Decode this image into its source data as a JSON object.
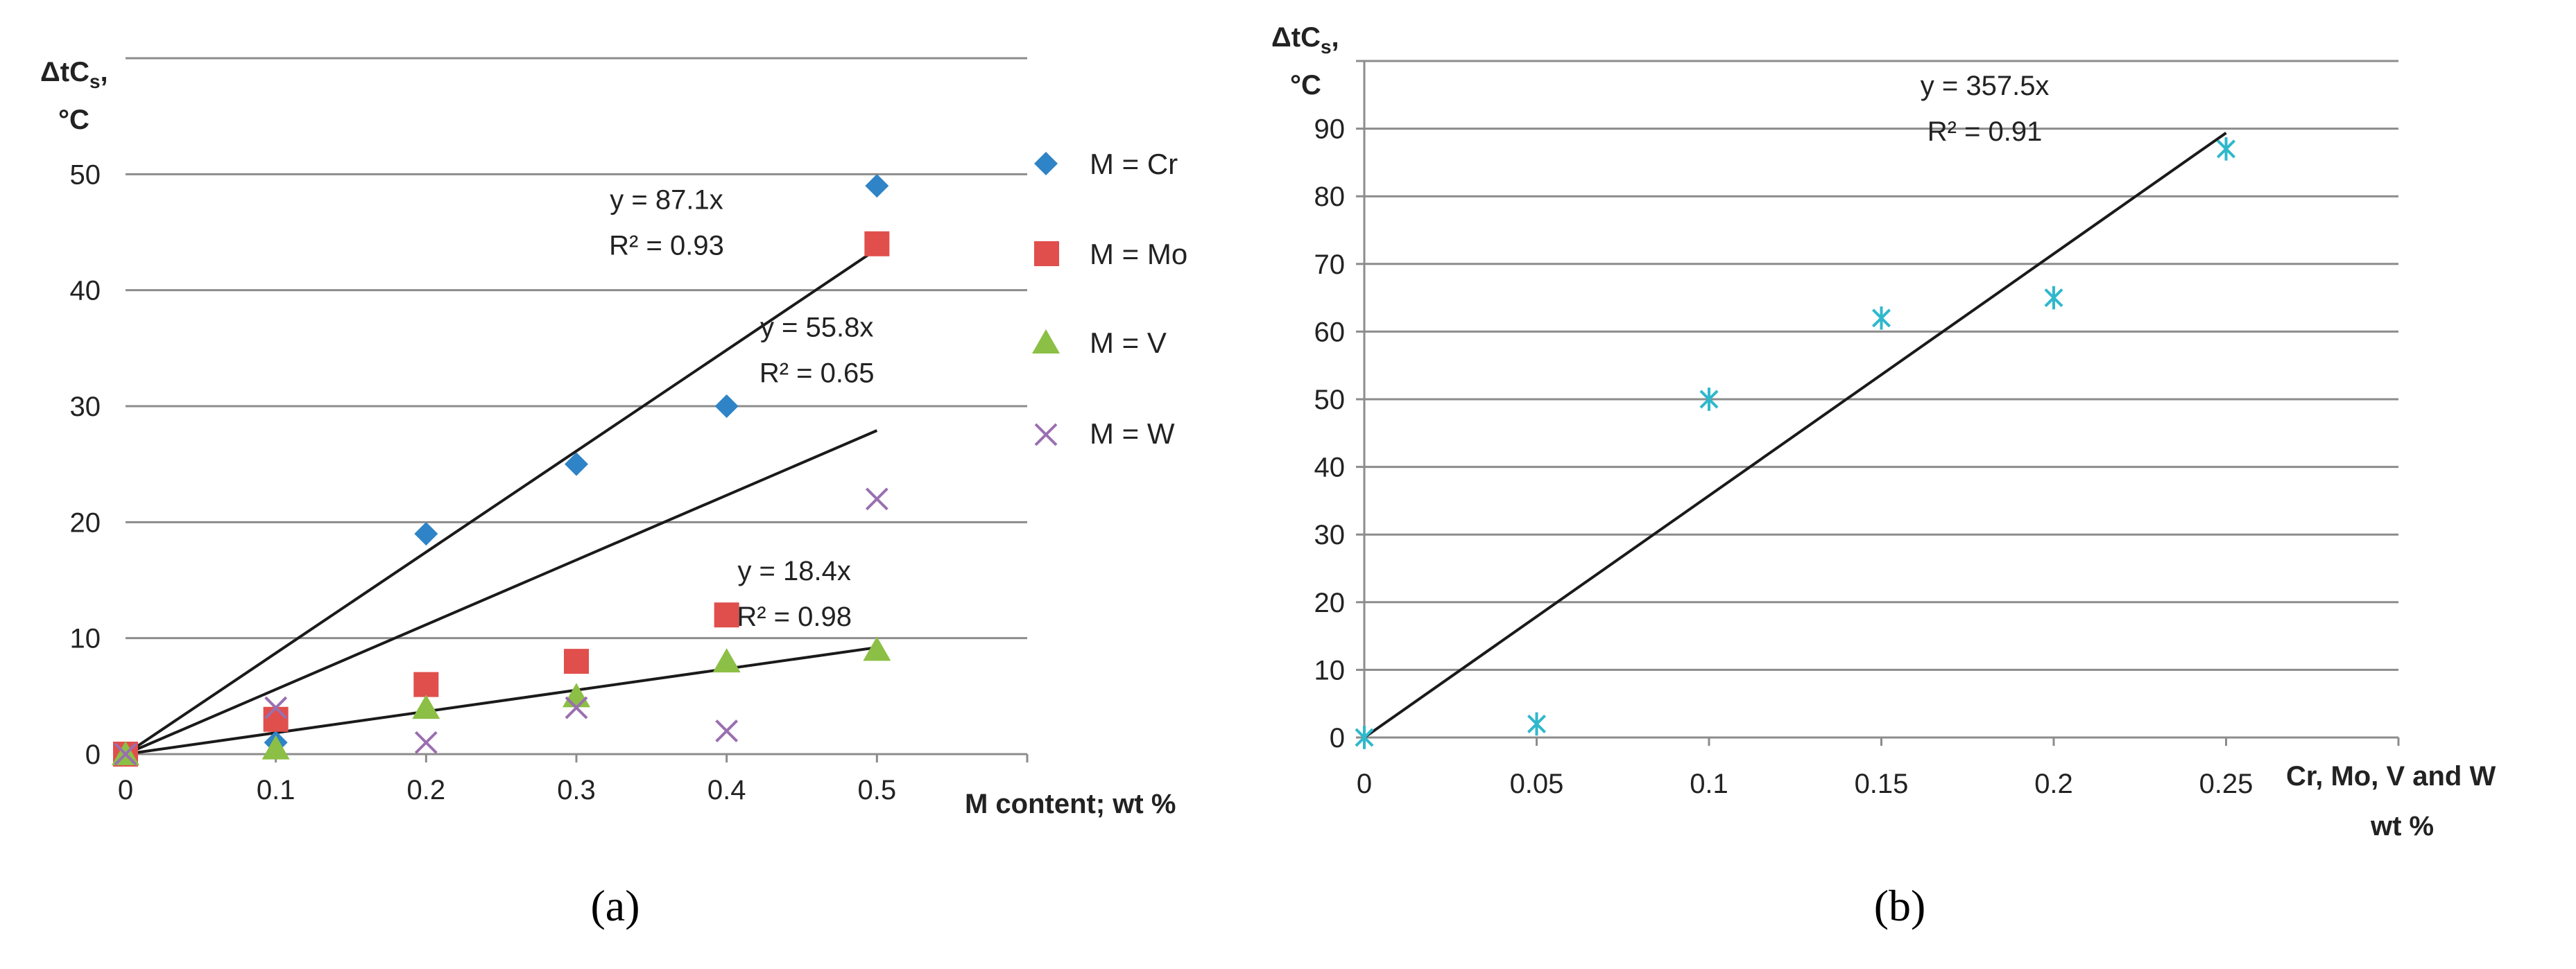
{
  "colors": {
    "grid": "#8c8c8c",
    "axis": "#8c8c8c",
    "trend": "#1a1a1a",
    "cr": "#2e84c6",
    "mo": "#e04f4c",
    "v": "#8cbf45",
    "w": "#9a6fb0",
    "b_marker": "#2fb8cc"
  },
  "chart_data": [
    {
      "type": "scatter",
      "panel_label": "(a)",
      "ylabel_line1": "ΔtC",
      "ylabel_sub": "s",
      "ylabel_comma": ",",
      "ylabel_line2": "°C",
      "xlabel": "M content; wt %",
      "xlim": [
        0,
        0.6
      ],
      "ylim": [
        0,
        60
      ],
      "grid": true,
      "legend_position": "right",
      "x_ticks": [
        0,
        0.1,
        0.2,
        0.3,
        0.4,
        0.5
      ],
      "x_tick_labels": [
        "0",
        "0.1",
        "0.2",
        "0.3",
        "0.4",
        "0.5"
      ],
      "y_ticks": [
        0,
        10,
        20,
        30,
        40,
        50
      ],
      "y_tick_labels": [
        "0",
        "10",
        "20",
        "30",
        "40",
        "50"
      ],
      "series": [
        {
          "name": "M = Cr",
          "marker": "diamond",
          "color_key": "cr",
          "x": [
            0,
            0.1,
            0.2,
            0.3,
            0.4,
            0.5
          ],
          "y": [
            0,
            1,
            19,
            25,
            30,
            49
          ]
        },
        {
          "name": "M = Mo",
          "marker": "square",
          "color_key": "mo",
          "x": [
            0,
            0.1,
            0.2,
            0.3,
            0.4,
            0.5
          ],
          "y": [
            0,
            3,
            6,
            8,
            12,
            44
          ]
        },
        {
          "name": "M = V",
          "marker": "triangle",
          "color_key": "v",
          "x": [
            0,
            0.1,
            0.2,
            0.3,
            0.4,
            0.5
          ],
          "y": [
            0,
            0.5,
            4,
            5,
            8,
            9
          ]
        },
        {
          "name": "M = W",
          "marker": "x",
          "color_key": "w",
          "x": [
            0,
            0.1,
            0.2,
            0.3,
            0.4,
            0.5
          ],
          "y": [
            0,
            4,
            1,
            4,
            2,
            22
          ]
        }
      ],
      "trendlines": [
        {
          "slope": 87.1,
          "x_end": 0.5,
          "eq": "y = 87.1x",
          "r2": "R² = 0.93",
          "label_x": 0.36,
          "label_y": 47
        },
        {
          "slope": 55.8,
          "x_end": 0.5,
          "eq": "y = 55.8x",
          "r2": "R² = 0.65",
          "label_x": 0.46,
          "label_y": 36
        },
        {
          "slope": 18.4,
          "x_end": 0.5,
          "eq": "y = 18.4x",
          "r2": "R² = 0.98",
          "label_x": 0.445,
          "label_y": 15
        }
      ]
    },
    {
      "type": "scatter",
      "panel_label": "(b)",
      "ylabel_line1": "ΔtC",
      "ylabel_sub": "s",
      "ylabel_comma": ",",
      "ylabel_line2": "°C",
      "xlabel_line1": "Cr, Mo, V and W",
      "xlabel_line2": "wt %",
      "xlim": [
        0,
        0.3
      ],
      "ylim": [
        0,
        100
      ],
      "grid": true,
      "x_ticks": [
        0,
        0.05,
        0.1,
        0.15,
        0.2,
        0.25
      ],
      "x_tick_labels": [
        "0",
        "0.05",
        "0.1",
        "0.15",
        "0.2",
        "0.25"
      ],
      "y_ticks": [
        0,
        10,
        20,
        30,
        40,
        50,
        60,
        70,
        80,
        90
      ],
      "y_tick_labels": [
        "0",
        "10",
        "20",
        "30",
        "40",
        "50",
        "60",
        "70",
        "80",
        "90"
      ],
      "series": [
        {
          "name": "Cr, Mo, V and W",
          "marker": "asterisk",
          "color_key": "b_marker",
          "x": [
            0,
            0.05,
            0.1,
            0.15,
            0.2,
            0.25
          ],
          "y": [
            0,
            2,
            50,
            62,
            65,
            87
          ]
        }
      ],
      "trendlines": [
        {
          "slope": 357.5,
          "x_end": 0.25,
          "eq": "y = 357.5x",
          "r2": "R² = 0.91",
          "label_x": 0.18,
          "label_y": 95
        }
      ]
    }
  ]
}
